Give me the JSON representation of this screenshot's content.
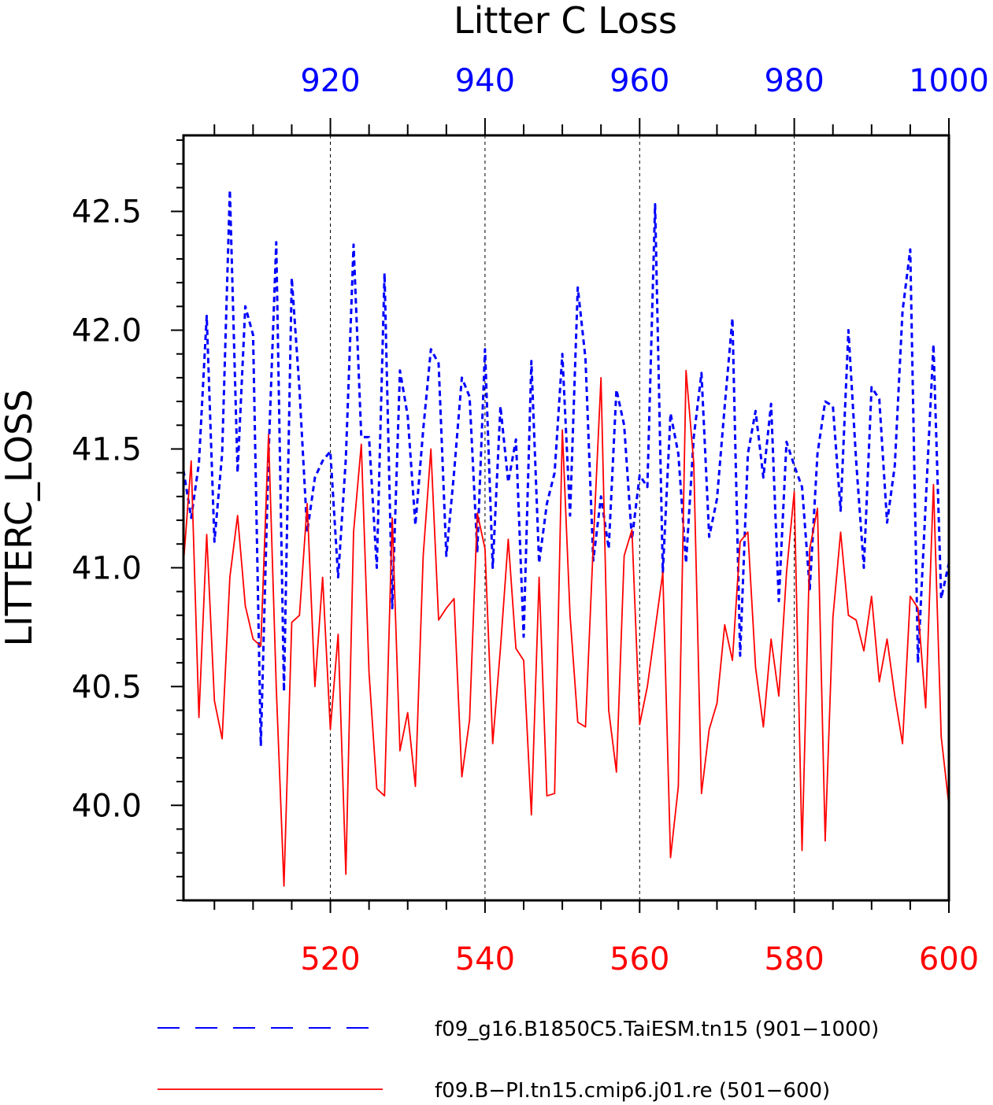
{
  "chart_data": {
    "type": "line",
    "title": "Litter C Loss",
    "ylabel": "LITTERC_LOSS",
    "ylim": [
      39.6,
      42.82
    ],
    "yticks": [
      40.0,
      40.5,
      41.0,
      41.5,
      42.0,
      42.5
    ],
    "ytick_labels": [
      "40.0",
      "40.5",
      "41.0",
      "41.5",
      "42.0",
      "42.5"
    ],
    "grid": "vertical dashed at labelled x ticks",
    "legend_position": "bottom",
    "top_axis": {
      "color": "#0000ff",
      "range": [
        901,
        1000
      ],
      "ticks": [
        920,
        940,
        960,
        980,
        1000
      ],
      "tick_labels": [
        "920",
        "940",
        "960",
        "980",
        "1000"
      ]
    },
    "bottom_axis": {
      "color": "#ff0000",
      "range": [
        501,
        600
      ],
      "ticks": [
        520,
        540,
        560,
        580,
        600
      ],
      "tick_labels": [
        "520",
        "540",
        "560",
        "580",
        "600"
      ]
    },
    "series": [
      {
        "name": "f09_g16.B1850C5.TaiESM.tn15 (901−1000)",
        "color": "#0000ff",
        "dash": "dashed",
        "axis": "top",
        "x_start": 901,
        "values": [
          41.41,
          41.21,
          41.44,
          42.06,
          41.11,
          41.48,
          42.59,
          41.4,
          42.1,
          41.98,
          40.25,
          41.47,
          42.37,
          40.48,
          42.22,
          41.75,
          41.15,
          41.38,
          41.45,
          41.49,
          40.96,
          41.46,
          42.36,
          41.55,
          41.55,
          41.0,
          42.24,
          40.83,
          41.83,
          41.64,
          41.18,
          41.58,
          41.92,
          41.86,
          41.05,
          41.4,
          41.8,
          41.72,
          41.07,
          41.92,
          41.0,
          41.68,
          41.36,
          41.54,
          40.71,
          41.87,
          41.02,
          41.27,
          41.4,
          41.9,
          41.22,
          42.18,
          41.88,
          41.03,
          41.3,
          41.08,
          41.75,
          41.6,
          41.12,
          41.39,
          41.34,
          42.53,
          40.98,
          41.65,
          41.48,
          41.02,
          41.55,
          41.82,
          41.13,
          41.29,
          41.68,
          42.05,
          40.63,
          41.48,
          41.66,
          41.38,
          41.69,
          40.86,
          41.53,
          41.43,
          41.34,
          40.91,
          41.48,
          41.7,
          41.68,
          41.24,
          42.0,
          41.45,
          41.0,
          41.76,
          41.71,
          41.19,
          41.43,
          42.08,
          42.34,
          40.6,
          41.27,
          41.94,
          40.87,
          41.02
        ]
      },
      {
        "name": "f09.B−PI.tn15.cmip6.j01.re (501−600)",
        "color": "#ff0000",
        "dash": "solid",
        "axis": "bottom",
        "x_start": 501,
        "values": [
          41.02,
          41.45,
          40.37,
          41.14,
          40.44,
          40.28,
          40.96,
          41.22,
          40.84,
          40.7,
          40.67,
          41.56,
          40.5,
          39.66,
          40.77,
          40.8,
          41.27,
          40.5,
          40.96,
          40.32,
          40.72,
          39.71,
          41.15,
          41.52,
          40.56,
          40.07,
          40.04,
          41.21,
          40.23,
          40.39,
          40.08,
          41.05,
          41.5,
          40.78,
          40.83,
          40.87,
          40.12,
          40.36,
          41.23,
          41.08,
          40.26,
          40.66,
          41.12,
          40.66,
          40.61,
          39.96,
          40.96,
          40.04,
          40.05,
          41.58,
          40.8,
          40.35,
          40.33,
          41.1,
          41.8,
          40.4,
          40.14,
          41.05,
          41.16,
          40.34,
          40.5,
          40.74,
          40.98,
          39.78,
          40.08,
          41.83,
          41.44,
          40.05,
          40.32,
          40.43,
          40.76,
          40.61,
          41.11,
          41.15,
          40.58,
          40.33,
          40.7,
          40.46,
          40.98,
          41.32,
          39.81,
          41.08,
          41.25,
          39.85,
          40.79,
          41.15,
          40.8,
          40.78,
          40.65,
          40.88,
          40.52,
          40.7,
          40.46,
          40.26,
          40.88,
          40.83,
          40.41,
          41.35,
          40.29,
          40.0
        ]
      }
    ]
  }
}
